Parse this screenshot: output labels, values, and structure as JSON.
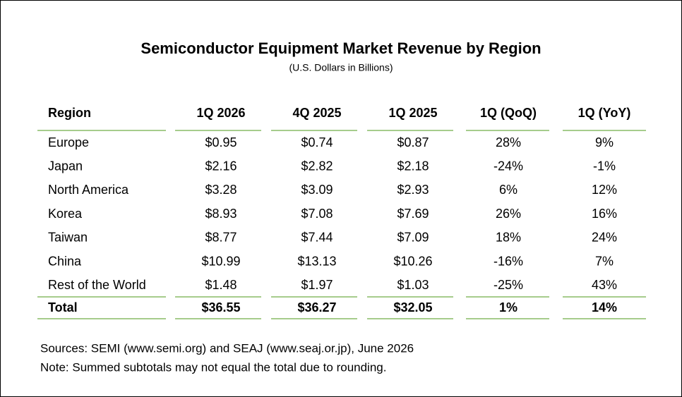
{
  "header": {
    "title": "Semiconductor Equipment Market Revenue by Region",
    "subtitle": "(U.S. Dollars in Billions)"
  },
  "table": {
    "columns": [
      "Region",
      "1Q 2026",
      "4Q 2025",
      "1Q 2025",
      "1Q (QoQ)",
      "1Q (YoY)"
    ],
    "rows": [
      [
        "Europe",
        "$0.95",
        "$0.74",
        "$0.87",
        "28%",
        "9%"
      ],
      [
        "Japan",
        "$2.16",
        "$2.82",
        "$2.18",
        "-24%",
        "-1%"
      ],
      [
        "North America",
        "$3.28",
        "$3.09",
        "$2.93",
        "6%",
        "12%"
      ],
      [
        "Korea",
        "$8.93",
        "$7.08",
        "$7.69",
        "26%",
        "16%"
      ],
      [
        "Taiwan",
        "$8.77",
        "$7.44",
        "$7.09",
        "18%",
        "24%"
      ],
      [
        "China",
        "$10.99",
        "$13.13",
        "$10.26",
        "-16%",
        "7%"
      ],
      [
        "Rest of the World",
        "$1.48",
        "$1.97",
        "$1.03",
        "-25%",
        "43%"
      ]
    ],
    "total": [
      "Total",
      "$36.55",
      "$36.27",
      "$32.05",
      "1%",
      "14%"
    ]
  },
  "notes": [
    "Sources: SEMI (www.semi.org) and SEAJ (www.seaj.or.jp), June 2026",
    "Note: Summed subtotals may not equal the total due to rounding."
  ]
}
